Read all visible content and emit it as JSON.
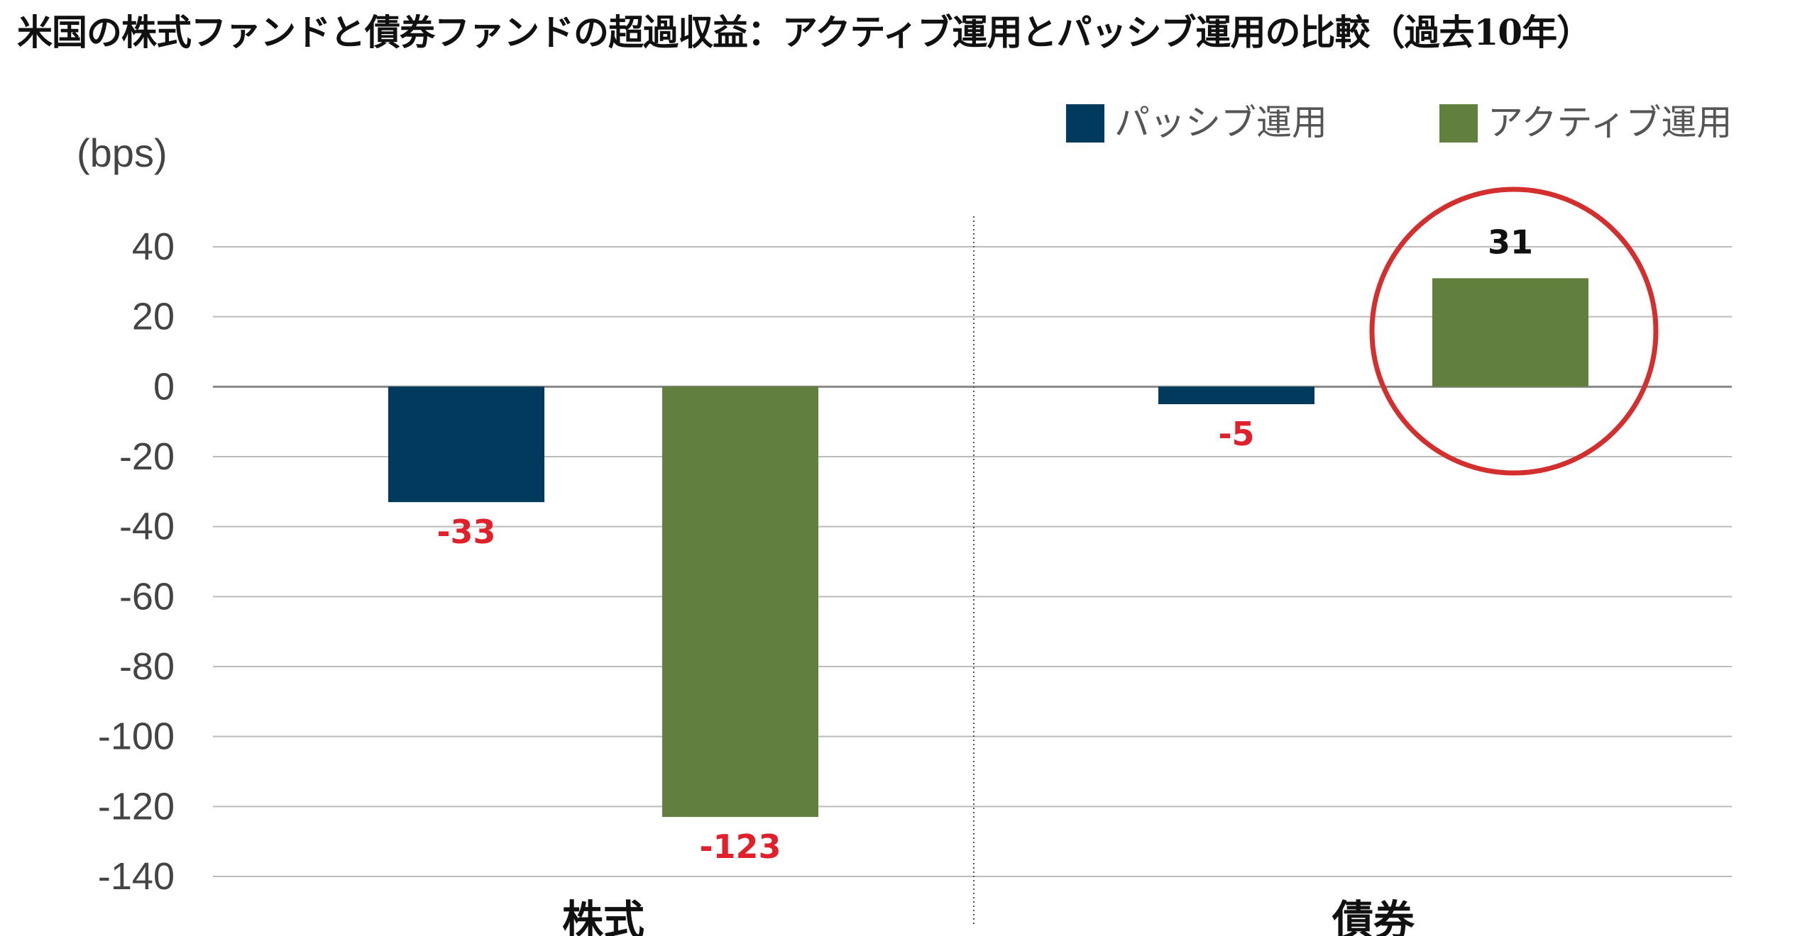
{
  "title": "米国の株式ファンドと債券ファンドの超過収益：アクティブ運用とパッシブ運用の比較（過去10年）",
  "colors": {
    "passive": "#003a5d",
    "active": "#62803d",
    "negative_label": "#e0202b",
    "positive_label": "#111111",
    "highlight_circle": "#d32f2f",
    "gridline": "#bbbbbb"
  },
  "chart_data": {
    "type": "bar",
    "title": "米国の株式ファンドと債券ファンドの超過収益：アクティブ運用とパッシブ運用の比較（過去10年）",
    "ylabel": "(bps)",
    "xlabel": "",
    "categories": [
      "株式",
      "債券"
    ],
    "series": [
      {
        "name": "パッシブ運用",
        "values": [
          -33,
          -5
        ]
      },
      {
        "name": "アクティブ運用",
        "values": [
          -123,
          31
        ]
      }
    ],
    "data_labels": [
      [
        "-33",
        "-5"
      ],
      [
        "-123",
        "31"
      ]
    ],
    "ylim": [
      -140,
      40
    ],
    "yticks": [
      40,
      20,
      0,
      -20,
      -40,
      -60,
      -80,
      -100,
      -120,
      -140
    ],
    "ytick_labels": [
      "40",
      "20",
      "0",
      "-20",
      "-40",
      "-60",
      "-80",
      "-100",
      "-120",
      "-140"
    ],
    "grid": true,
    "legend": "top-right",
    "highlight": {
      "category": "債券",
      "series": "アクティブ運用"
    }
  }
}
